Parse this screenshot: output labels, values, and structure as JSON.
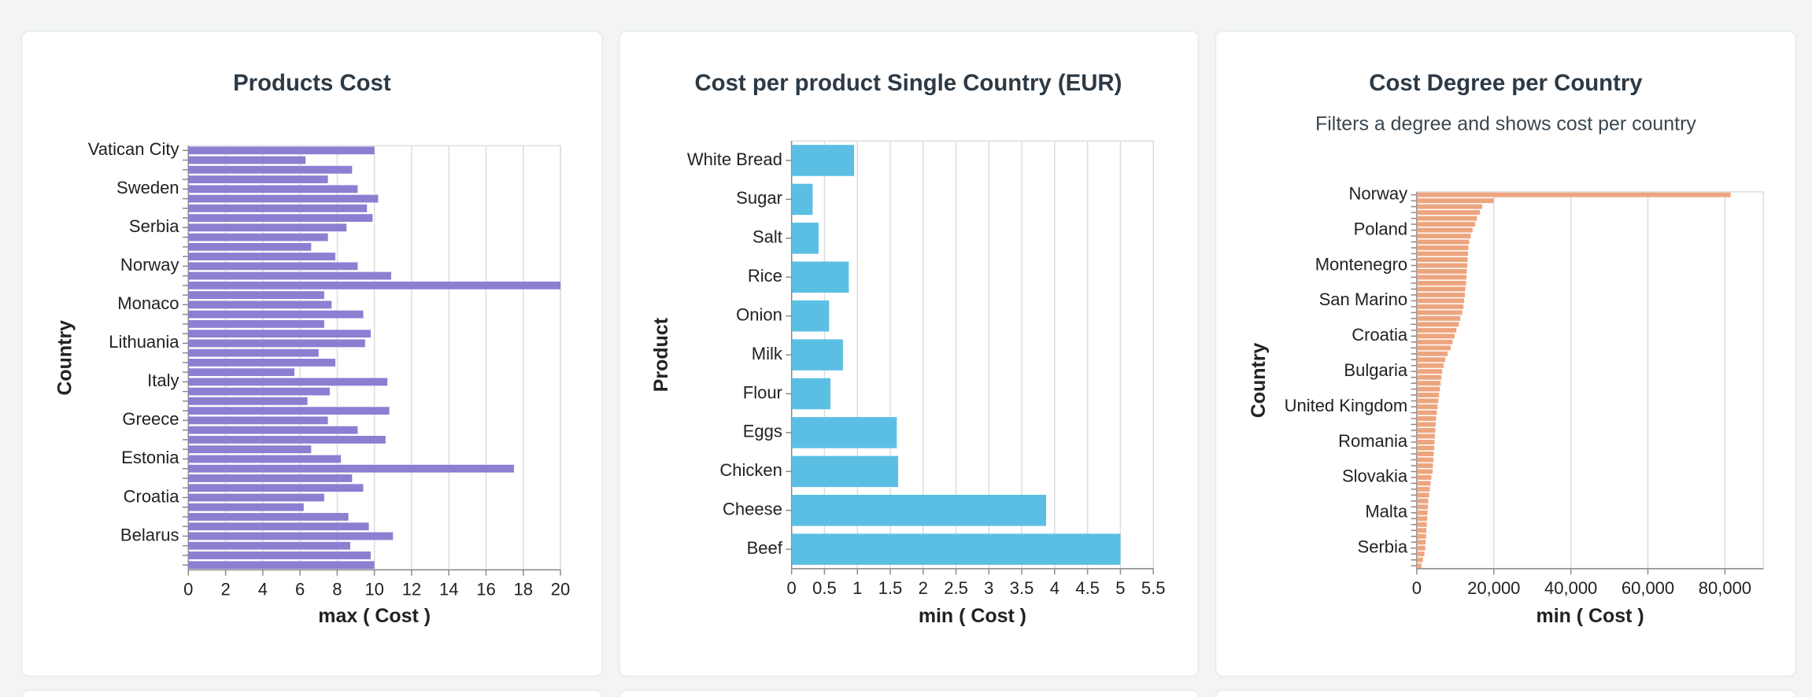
{
  "chart_data": [
    {
      "type": "bar",
      "orientation": "horizontal",
      "title": "Products Cost",
      "x_label": "max ( Cost )",
      "y_label": "Country",
      "color": "#8b7fd2",
      "categories": [
        "Vatican City",
        null,
        null,
        null,
        "Sweden",
        null,
        null,
        null,
        "Serbia",
        null,
        null,
        null,
        "Norway",
        null,
        null,
        null,
        "Monaco",
        null,
        null,
        null,
        "Lithuania",
        null,
        null,
        null,
        "Italy",
        null,
        null,
        null,
        "Greece",
        null,
        null,
        null,
        "Estonia",
        null,
        null,
        null,
        "Croatia",
        null,
        null,
        null,
        "Belarus",
        null,
        null,
        null
      ],
      "values": [
        10,
        6.3,
        8.8,
        7.5,
        9.1,
        10.2,
        9.6,
        9.9,
        8.5,
        7.5,
        6.6,
        7.9,
        9.1,
        10.9,
        20,
        7.3,
        7.7,
        9.4,
        7.3,
        9.8,
        9.5,
        7.0,
        7.9,
        5.7,
        10.7,
        7.6,
        6.4,
        10.8,
        7.5,
        9.1,
        10.6,
        6.6,
        8.2,
        17.5,
        8.8,
        9.4,
        7.3,
        6.2,
        8.6,
        9.7,
        11,
        8.7,
        9.8,
        10
      ],
      "xlim": [
        0,
        20
      ],
      "xticks": [
        0,
        2,
        4,
        6,
        8,
        10,
        12,
        14,
        16,
        18,
        20
      ],
      "grid": true
    },
    {
      "type": "bar",
      "orientation": "horizontal",
      "title": "Cost per product Single Country (EUR)",
      "x_label": "min ( Cost )",
      "y_label": "Product",
      "color": "#5bbfe3",
      "categories": [
        "White Bread",
        "Sugar",
        "Salt",
        "Rice",
        "Onion",
        "Milk",
        "Flour",
        "Eggs",
        "Chicken",
        "Cheese",
        "Beef"
      ],
      "values": [
        0.95,
        0.32,
        0.41,
        0.87,
        0.57,
        0.78,
        0.59,
        1.6,
        1.62,
        3.87,
        5.0
      ],
      "xlim": [
        0,
        5.5
      ],
      "xticks": [
        0,
        0.5,
        1,
        1.5,
        2,
        2.5,
        3,
        3.5,
        4,
        4.5,
        5,
        5.5
      ],
      "grid": true
    },
    {
      "type": "bar",
      "orientation": "horizontal",
      "title": "Cost Degree per Country",
      "subtitle": "Filters a degree and shows cost per country",
      "x_label": "min ( Cost )",
      "y_label": "Country",
      "color": "#eda57f",
      "categories": [
        "Norway",
        null,
        null,
        null,
        null,
        null,
        "Poland",
        null,
        null,
        null,
        null,
        null,
        "Montenegro",
        null,
        null,
        null,
        null,
        null,
        "San Marino",
        null,
        null,
        null,
        null,
        null,
        "Croatia",
        null,
        null,
        null,
        null,
        null,
        "Bulgaria",
        null,
        null,
        null,
        null,
        null,
        "United Kingdom",
        null,
        null,
        null,
        null,
        null,
        "Romania",
        null,
        null,
        null,
        null,
        null,
        "Slovakia",
        null,
        null,
        null,
        null,
        null,
        "Malta",
        null,
        null,
        null,
        null,
        null,
        "Serbia",
        null,
        null,
        null
      ],
      "values": [
        81500,
        20000,
        17000,
        16400,
        15600,
        15200,
        14500,
        14000,
        13600,
        13400,
        13300,
        13200,
        13100,
        13000,
        12900,
        12800,
        12600,
        12500,
        12300,
        12100,
        11800,
        11300,
        10900,
        10300,
        9800,
        9300,
        8800,
        8000,
        7400,
        7000,
        6600,
        6400,
        6200,
        6000,
        5800,
        5600,
        5400,
        5200,
        5000,
        4900,
        4800,
        4700,
        4600,
        4500,
        4400,
        4300,
        4200,
        4100,
        3800,
        3600,
        3400,
        3200,
        3000,
        2900,
        2800,
        2700,
        2600,
        2500,
        2400,
        2300,
        2200,
        2000,
        1600,
        1200
      ],
      "xlim": [
        0,
        90000
      ],
      "xticks": [
        0,
        {
          "value": 20000,
          "label": "20,000"
        },
        {
          "value": 40000,
          "label": "40,000"
        },
        {
          "value": 60000,
          "label": "60,000"
        },
        {
          "value": 80000,
          "label": "80,000"
        }
      ],
      "grid": true
    }
  ]
}
